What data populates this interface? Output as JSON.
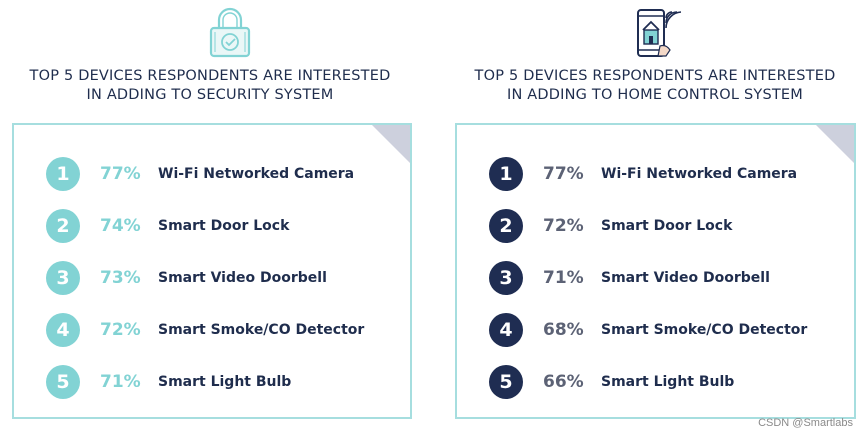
{
  "security": {
    "title_line1": "TOP 5 DEVICES RESPONDENTS ARE INTERESTED",
    "title_line2": "IN ADDING TO SECURITY SYSTEM",
    "icon": "padlock-check-icon",
    "badge_color": "#82d3d4",
    "percent_color": "#82d3d4",
    "items": [
      {
        "rank": "1",
        "percent": "77%",
        "device": "Wi-Fi Networked Camera"
      },
      {
        "rank": "2",
        "percent": "74%",
        "device": "Smart Door Lock"
      },
      {
        "rank": "3",
        "percent": "73%",
        "device": "Smart Video Doorbell"
      },
      {
        "rank": "4",
        "percent": "72%",
        "device": "Smart Smoke/CO Detector"
      },
      {
        "rank": "5",
        "percent": "71%",
        "device": "Smart Light Bulb"
      }
    ]
  },
  "home_control": {
    "title_line1": "TOP 5 DEVICES RESPONDENTS ARE INTERESTED",
    "title_line2": "IN ADDING TO HOME CONTROL SYSTEM",
    "icon": "smartphone-home-wifi-icon",
    "badge_color": "#1f2d52",
    "percent_color": "#5c6275",
    "items": [
      {
        "rank": "1",
        "percent": "77%",
        "device": "Wi-Fi Networked Camera"
      },
      {
        "rank": "2",
        "percent": "72%",
        "device": "Smart Door Lock"
      },
      {
        "rank": "3",
        "percent": "71%",
        "device": "Smart Video Doorbell"
      },
      {
        "rank": "4",
        "percent": "68%",
        "device": "Smart Smoke/CO Detector"
      },
      {
        "rank": "5",
        "percent": "66%",
        "device": "Smart Light Bulb"
      }
    ]
  },
  "card_border_color": "#a6dedf",
  "text_color": "#1f2d4d",
  "watermark": "CSDN @Smartlabs"
}
